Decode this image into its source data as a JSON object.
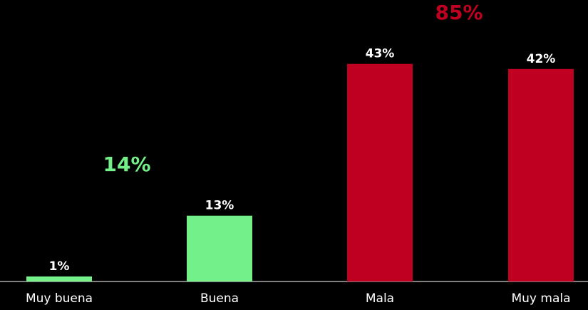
{
  "chart_data": {
    "type": "bar",
    "categories": [
      "Muy buena",
      "Buena",
      "Mala",
      "Muy mala"
    ],
    "values": [
      1,
      13,
      43,
      42
    ],
    "value_labels": [
      "1%",
      "13%",
      "43%",
      "42%"
    ],
    "bar_colors": [
      "#74f08a",
      "#74f08a",
      "#c00020",
      "#c00020"
    ],
    "ylim": [
      0,
      50
    ],
    "grid": false,
    "legend": "none",
    "title": "",
    "xlabel": "",
    "ylabel": "",
    "groups": [
      {
        "label": "14%",
        "color": "#74f08a",
        "categories": [
          "Muy buena",
          "Buena"
        ]
      },
      {
        "label": "85%",
        "color": "#c00020",
        "categories": [
          "Mala",
          "Muy mala"
        ]
      }
    ]
  }
}
